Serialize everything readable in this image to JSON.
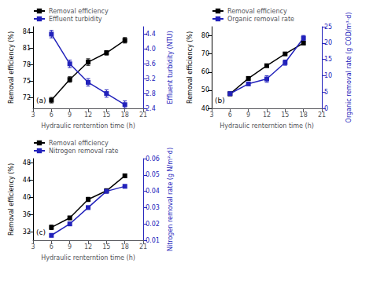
{
  "chart_data": [
    {
      "type": "line",
      "x": [
        6,
        9,
        12,
        15,
        18
      ],
      "xlabel": "Hydraulic renterntion time (h)",
      "xlim": [
        3,
        21
      ],
      "xticks": [
        3,
        6,
        9,
        12,
        15,
        18,
        21
      ],
      "ylabel": "Removal efficiency (%)",
      "ylim": [
        70,
        85
      ],
      "yticks": [
        72,
        75,
        78,
        81,
        84
      ],
      "y2label": "Effluent turbidity (NTU)",
      "y2lim": [
        2.4,
        4.6
      ],
      "y2ticks": [
        2.4,
        2.8,
        3.2,
        3.6,
        {
          "value": 4.0,
          "label": "4.0"
        },
        4.4
      ],
      "series": [
        {
          "name": "Removal efficiency",
          "color": "#000000",
          "marker": "square",
          "values": [
            71.5,
            75.3,
            78.5,
            80.2,
            82.5
          ],
          "errors": [
            0.5,
            0.5,
            0.6,
            0.4,
            0.5
          ]
        },
        {
          "name": "Effluent turbidity",
          "color": "#2222bb",
          "marker": "square",
          "axis": "y2",
          "values": [
            4.4,
            3.6,
            3.1,
            2.8,
            2.5
          ],
          "errors": [
            0.1,
            0.1,
            0.1,
            0.1,
            0.1
          ]
        }
      ],
      "legend": "upper left",
      "grid": false,
      "annotation": "(a)"
    },
    {
      "type": "line",
      "x": [
        6,
        9,
        12,
        15,
        18
      ],
      "xlabel": "Hydraulic renterntion time (h)",
      "xlim": [
        3,
        21
      ],
      "xticks": [
        3,
        6,
        9,
        12,
        15,
        18,
        21
      ],
      "ylabel": "Removal efficiency (%)",
      "ylim": [
        40,
        85
      ],
      "yticks": [
        40,
        50,
        60,
        70,
        80
      ],
      "y2label": "Organic removal rate (g COD/m³·d)",
      "y2lim": [
        0,
        25
      ],
      "y2ticks": [
        0,
        5,
        10,
        15,
        20,
        25
      ],
      "series": [
        {
          "name": "Removal efficiency",
          "color": "#000000",
          "marker": "square",
          "values": [
            48.0,
            56.5,
            63.5,
            70.0,
            76.0
          ],
          "errors": [
            1.0,
            1.0,
            0.8,
            0.7,
            0.8
          ]
        },
        {
          "name": "Organic removal rate",
          "color": "#2222bb",
          "marker": "square",
          "axis": "y2",
          "values": [
            4.5,
            7.5,
            9.0,
            14.0,
            21.5
          ],
          "errors": [
            0.5,
            0.5,
            1.0,
            0.8,
            0.8
          ]
        }
      ],
      "legend": "upper left",
      "grid": false,
      "annotation": "(b)"
    },
    {
      "type": "line",
      "x": [
        6,
        9,
        12,
        15,
        18
      ],
      "xlabel": "Hydraulic renterntion time (h)",
      "xlim": [
        3,
        21
      ],
      "xticks": [
        3,
        6,
        9,
        12,
        15,
        18,
        21
      ],
      "ylabel": "Removal efficiency (%)",
      "ylim": [
        30,
        49
      ],
      "yticks": [
        32,
        36,
        40,
        44,
        48
      ],
      "y2label": "Nitrogen removal rate (g N/m²·d)",
      "y2lim": [
        0.01,
        0.06
      ],
      "y2ticks": [
        0.01,
        0.02,
        0.03,
        0.04,
        0.05,
        0.06
      ],
      "series": [
        {
          "name": "Removal efficiency",
          "color": "#000000",
          "marker": "square",
          "values": [
            33.0,
            35.2,
            39.5,
            41.5,
            45.0
          ],
          "errors": [
            0.5,
            0.4,
            0.5,
            0.5,
            0.4
          ]
        },
        {
          "name": "Nitrogen removal rate",
          "color": "#2222bb",
          "marker": "square",
          "axis": "y2",
          "values": [
            0.013,
            0.02,
            0.03,
            0.04,
            0.043
          ],
          "errors": [
            0.001,
            0.001,
            0.001,
            0.001,
            0.001
          ]
        }
      ],
      "legend": "upper left",
      "grid": false,
      "annotation": "(c)"
    }
  ]
}
